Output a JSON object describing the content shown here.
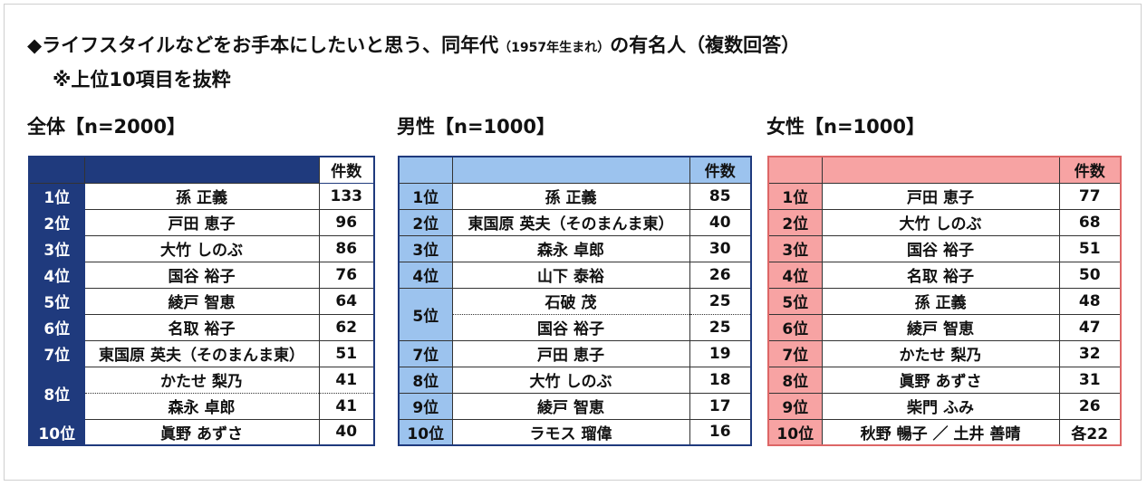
{
  "title": {
    "main": "◆ライフスタイルなどをお手本にしたいと思う、同年代",
    "small": "（1957年生まれ）",
    "tail": "の有名人（複数回答）"
  },
  "note": "※上位10項目を抜粋",
  "colors": {
    "overall": "#1f3a7d",
    "male": "#9cc3ee",
    "female": "#f7a3a3"
  },
  "chart_data": [
    {
      "type": "table",
      "title": "全体【n=2000】",
      "columns": [
        "",
        "",
        "件数"
      ],
      "rows": [
        {
          "rank": "1位",
          "name": "孫 正義",
          "count": "133"
        },
        {
          "rank": "2位",
          "name": "戸田 恵子",
          "count": "96"
        },
        {
          "rank": "3位",
          "name": "大竹 しのぶ",
          "count": "86"
        },
        {
          "rank": "4位",
          "name": "国谷 裕子",
          "count": "76"
        },
        {
          "rank": "5位",
          "name": "綾戸 智恵",
          "count": "64"
        },
        {
          "rank": "6位",
          "name": "名取 裕子",
          "count": "62"
        },
        {
          "rank": "7位",
          "name": "東国原 英夫（そのまんま東）",
          "count": "51"
        },
        {
          "rank": "8位",
          "name": "かたせ 梨乃",
          "count": "41"
        },
        {
          "rank": "",
          "name": "森永 卓郎",
          "count": "41"
        },
        {
          "rank": "10位",
          "name": "眞野 あずさ",
          "count": "40"
        }
      ]
    },
    {
      "type": "table",
      "title": "男性【n=1000】",
      "columns": [
        "",
        "",
        "件数"
      ],
      "rows": [
        {
          "rank": "1位",
          "name": "孫 正義",
          "count": "85"
        },
        {
          "rank": "2位",
          "name": "東国原 英夫（そのまんま東）",
          "count": "40"
        },
        {
          "rank": "3位",
          "name": "森永 卓郎",
          "count": "30"
        },
        {
          "rank": "4位",
          "name": "山下 泰裕",
          "count": "26"
        },
        {
          "rank": "5位",
          "name": "石破 茂",
          "count": "25"
        },
        {
          "rank": "",
          "name": "国谷 裕子",
          "count": "25"
        },
        {
          "rank": "7位",
          "name": "戸田 恵子",
          "count": "19"
        },
        {
          "rank": "8位",
          "name": "大竹 しのぶ",
          "count": "18"
        },
        {
          "rank": "9位",
          "name": "綾戸 智恵",
          "count": "17"
        },
        {
          "rank": "10位",
          "name": "ラモス 瑠偉",
          "count": "16"
        }
      ]
    },
    {
      "type": "table",
      "title": "女性【n=1000】",
      "columns": [
        "",
        "",
        "件数"
      ],
      "rows": [
        {
          "rank": "1位",
          "name": "戸田 恵子",
          "count": "77"
        },
        {
          "rank": "2位",
          "name": "大竹 しのぶ",
          "count": "68"
        },
        {
          "rank": "3位",
          "name": "国谷 裕子",
          "count": "51"
        },
        {
          "rank": "4位",
          "name": "名取 裕子",
          "count": "50"
        },
        {
          "rank": "5位",
          "name": "孫 正義",
          "count": "48"
        },
        {
          "rank": "6位",
          "name": "綾戸 智恵",
          "count": "47"
        },
        {
          "rank": "7位",
          "name": "かたせ 梨乃",
          "count": "32"
        },
        {
          "rank": "8位",
          "name": "眞野 あずさ",
          "count": "31"
        },
        {
          "rank": "9位",
          "name": "柴門 ふみ",
          "count": "26"
        },
        {
          "rank": "10位",
          "name": "秋野 暢子 ／ 土井 善晴",
          "count": "各22"
        }
      ]
    }
  ]
}
